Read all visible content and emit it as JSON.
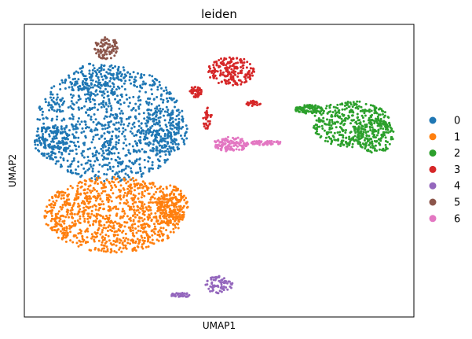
{
  "chart_data": {
    "type": "scatter",
    "title": "leiden",
    "xlabel": "UMAP1",
    "ylabel": "UMAP2",
    "xlim": [
      0,
      100
    ],
    "ylim": [
      0,
      100
    ],
    "ticks": false,
    "grid": false,
    "legend": {
      "position": "right",
      "marker": "circle"
    },
    "series": [
      {
        "name": "0",
        "color": "#1f77b4",
        "n_points": 1400,
        "regions": [
          {
            "shape": "ellipse",
            "cx": 22,
            "cy": 66,
            "rx": 19,
            "ry": 20,
            "weight": 0.74
          },
          {
            "shape": "ellipse",
            "cx": 19,
            "cy": 81,
            "rx": 7,
            "ry": 6,
            "weight": 0.08
          },
          {
            "shape": "ellipse",
            "cx": 7,
            "cy": 60,
            "rx": 4.5,
            "ry": 6,
            "weight": 0.08
          },
          {
            "shape": "ellipse",
            "cx": 36,
            "cy": 63,
            "rx": 6,
            "ry": 8,
            "weight": 0.1
          }
        ]
      },
      {
        "name": "1",
        "color": "#ff7f0e",
        "n_points": 1150,
        "regions": [
          {
            "shape": "ellipse",
            "cx": 23,
            "cy": 35,
            "rx": 18,
            "ry": 13,
            "weight": 0.85
          },
          {
            "shape": "ellipse",
            "cx": 38,
            "cy": 38,
            "rx": 4,
            "ry": 7,
            "weight": 0.15
          }
        ]
      },
      {
        "name": "2",
        "color": "#2ca02c",
        "n_points": 650,
        "regions": [
          {
            "shape": "ellipse",
            "cx": 84,
            "cy": 66,
            "rx": 10,
            "ry": 8,
            "weight": 0.65
          },
          {
            "shape": "ellipse",
            "cx": 90,
            "cy": 62,
            "rx": 5,
            "ry": 6,
            "weight": 0.2
          },
          {
            "shape": "ellipse",
            "cx": 73,
            "cy": 71,
            "rx": 3.5,
            "ry": 1.5,
            "weight": 0.15
          }
        ]
      },
      {
        "name": "3",
        "color": "#d62728",
        "n_points": 300,
        "regions": [
          {
            "shape": "ellipse",
            "cx": 53,
            "cy": 84,
            "rx": 6,
            "ry": 5,
            "weight": 0.65
          },
          {
            "shape": "ellipse",
            "cx": 44,
            "cy": 77,
            "rx": 1.5,
            "ry": 2,
            "weight": 0.15
          },
          {
            "shape": "ellipse",
            "cx": 47,
            "cy": 68,
            "rx": 1.2,
            "ry": 4,
            "weight": 0.1
          },
          {
            "shape": "ellipse",
            "cx": 59,
            "cy": 73,
            "rx": 2,
            "ry": 1,
            "weight": 0.1
          }
        ]
      },
      {
        "name": "4",
        "color": "#9467bd",
        "n_points": 110,
        "regions": [
          {
            "shape": "ellipse",
            "cx": 50,
            "cy": 11,
            "rx": 3.5,
            "ry": 3,
            "weight": 0.65
          },
          {
            "shape": "ellipse",
            "cx": 40,
            "cy": 7.5,
            "rx": 2.8,
            "ry": 0.8,
            "weight": 0.35
          }
        ]
      },
      {
        "name": "5",
        "color": "#8c564b",
        "n_points": 90,
        "regions": [
          {
            "shape": "ellipse",
            "cx": 21,
            "cy": 92,
            "rx": 3,
            "ry": 4,
            "weight": 1.0
          }
        ]
      },
      {
        "name": "6",
        "color": "#e377c2",
        "n_points": 180,
        "regions": [
          {
            "shape": "ellipse",
            "cx": 53,
            "cy": 59,
            "rx": 4.5,
            "ry": 2.5,
            "weight": 0.7
          },
          {
            "shape": "ellipse",
            "cx": 62,
            "cy": 59.5,
            "rx": 4,
            "ry": 0.8,
            "weight": 0.3
          }
        ]
      }
    ]
  }
}
